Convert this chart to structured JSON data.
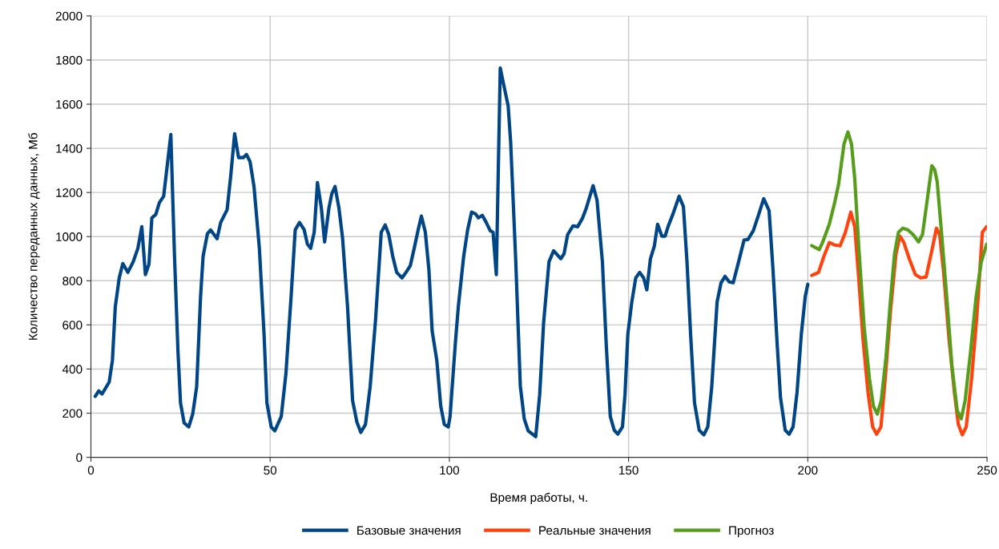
{
  "chart_data": {
    "type": "line",
    "xlabel": "Время работы, ч.",
    "ylabel": "Количество переданных данных, Мб",
    "xlim": [
      0,
      250
    ],
    "xticks": [
      0,
      50,
      100,
      150,
      200,
      250
    ],
    "ylim": [
      0,
      2000
    ],
    "yticks": [
      0,
      200,
      400,
      600,
      800,
      1000,
      1200,
      1400,
      1600,
      1800,
      2000
    ],
    "grid": true,
    "legend": "bottom",
    "marker": "none",
    "line_style": "solid",
    "series": [
      {
        "name": "Базовые значения",
        "color": "#004586",
        "x": [
          1.2,
          2.2,
          3.1,
          5.1,
          6,
          6.8,
          7.9,
          8.9,
          10.3,
          11.8,
          13.1,
          14.2,
          15.2,
          16.2,
          17,
          18.1,
          19.1,
          20.3,
          22.3,
          23.3,
          24.3,
          25,
          26,
          27.3,
          28.4,
          29.5,
          30.6,
          31.3,
          32.5,
          33.4,
          35.2,
          36.2,
          38,
          39,
          40.1,
          41.2,
          42.5,
          43.4,
          44.4,
          45.5,
          47,
          48.3,
          49.1,
          50.3,
          51.3,
          53.1,
          54.4,
          55.9,
          57,
          58.2,
          59.5,
          60.4,
          61.3,
          62.3,
          63.2,
          64.3,
          65.2,
          66.4,
          67.2,
          68.1,
          69.2,
          70.2,
          71.6,
          73,
          74.2,
          75.3,
          76.6,
          77.9,
          79.4,
          81,
          82.1,
          83.1,
          84.2,
          85.3,
          86.8,
          87.9,
          89.1,
          90.2,
          91.3,
          92.2,
          93.3,
          94.3,
          95.2,
          96.5,
          97.6,
          98.6,
          99.7,
          100.2,
          101.7,
          102.5,
          104,
          105.1,
          106.2,
          107.3,
          108.1,
          109.2,
          110.3,
          111.4,
          112.2,
          113.1,
          114.2,
          115.5,
          116.4,
          117.1,
          118.5,
          119.8,
          120.9,
          122,
          124.1,
          125.2,
          126.3,
          127.8,
          129.1,
          131.1,
          132,
          133,
          134.5,
          135.8,
          137.1,
          138.2,
          140.1,
          141.2,
          142.7,
          143.8,
          144.9,
          146,
          147,
          148.3,
          149,
          149.8,
          150.9,
          152,
          153.1,
          154.2,
          155.1,
          156.1,
          157.2,
          158.1,
          159.3,
          160.2,
          161.1,
          162.4,
          164.1,
          165.3,
          166.3,
          167.3,
          168.4,
          169.7,
          171,
          172.1,
          173.2,
          174.7,
          175.8,
          176.9,
          178.1,
          179.2,
          180.7,
          182.2,
          183.3,
          184.8,
          186.3,
          187.7,
          189.2,
          190.3,
          191.5,
          192.4,
          193.7,
          194.8,
          195.9,
          197,
          198.2,
          199.3,
          200
        ],
        "values": [
          276,
          301,
          287,
          341,
          439,
          682,
          813,
          878,
          838,
          886,
          947,
          1045,
          828,
          875,
          1085,
          1100,
          1154,
          1183,
          1463,
          922,
          476,
          247,
          156,
          138,
          196,
          319,
          730,
          911,
          1013,
          1030,
          991,
          1064,
          1122,
          1274,
          1466,
          1358,
          1358,
          1372,
          1340,
          1227,
          947,
          559,
          247,
          138,
          120,
          185,
          378,
          741,
          1031,
          1064,
          1031,
          966,
          947,
          1020,
          1245,
          1129,
          976,
          1129,
          1194,
          1227,
          1129,
          995,
          682,
          258,
          160,
          113,
          149,
          319,
          621,
          1020,
          1053,
          1009,
          911,
          838,
          813,
          838,
          868,
          947,
          1031,
          1093,
          1020,
          849,
          573,
          439,
          232,
          149,
          138,
          185,
          523,
          682,
          911,
          1031,
          1111,
          1103,
          1085,
          1096,
          1064,
          1027,
          1020,
          828,
          1764,
          1662,
          1593,
          1430,
          900,
          323,
          174,
          120,
          94,
          283,
          610,
          886,
          936,
          900,
          922,
          1009,
          1049,
          1045,
          1082,
          1129,
          1231,
          1165,
          886,
          501,
          185,
          123,
          105,
          138,
          283,
          559,
          704,
          813,
          838,
          813,
          759,
          900,
          958,
          1056,
          1002,
          1002,
          1049,
          1103,
          1183,
          1136,
          886,
          559,
          247,
          123,
          102,
          138,
          319,
          704,
          791,
          820,
          795,
          791,
          886,
          984,
          987,
          1027,
          1100,
          1172,
          1118,
          849,
          501,
          269,
          123,
          105,
          138,
          294,
          559,
          730,
          784
        ]
      },
      {
        "name": "Реальные значения",
        "color": "#ff420e",
        "x": [
          201.1,
          203,
          204.5,
          206,
          207.5,
          209,
          210.5,
          212,
          213.1,
          214.2,
          215.4,
          216.8,
          218.1,
          219.2,
          220.4,
          221.6,
          223.1,
          224.6,
          225.7,
          226.8,
          228.3,
          230,
          231.5,
          233,
          234.6,
          235.9,
          236.8,
          237.9,
          239.4,
          240.9,
          242,
          243.1,
          244.2,
          245.7,
          247.2,
          248.7,
          249.9
        ],
        "values": [
          824,
          838,
          911,
          973,
          962,
          958,
          1020,
          1111,
          1045,
          813,
          537,
          294,
          138,
          105,
          138,
          356,
          668,
          922,
          1002,
          973,
          900,
          828,
          813,
          817,
          936,
          1038,
          1009,
          838,
          537,
          294,
          149,
          102,
          138,
          356,
          646,
          1020,
          1045
        ]
      },
      {
        "name": "Прогноз",
        "color": "#579d1c",
        "x": [
          201.1,
          203.2,
          204.1,
          206,
          207.5,
          208.6,
          210.1,
          211.2,
          212.2,
          213.1,
          214.2,
          215.7,
          217.2,
          218.3,
          219.4,
          220.5,
          221.8,
          223.1,
          224.2,
          225.3,
          226.5,
          227.9,
          229.4,
          230.9,
          232,
          233.1,
          234.6,
          235.4,
          236.1,
          237.3,
          238.8,
          240.2,
          241.7,
          242.8,
          243.9,
          245.4,
          246.9,
          248.4,
          249.9
        ],
        "values": [
          959,
          941,
          973,
          1056,
          1154,
          1238,
          1419,
          1474,
          1419,
          1263,
          959,
          595,
          356,
          232,
          196,
          258,
          450,
          719,
          922,
          1020,
          1038,
          1031,
          1009,
          976,
          1009,
          1140,
          1321,
          1303,
          1249,
          1020,
          719,
          414,
          211,
          174,
          258,
          476,
          719,
          886,
          966
        ]
      }
    ]
  }
}
